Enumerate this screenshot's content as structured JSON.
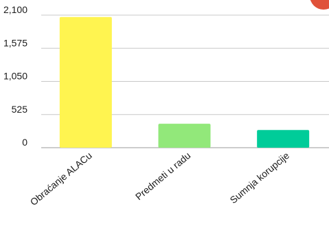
{
  "chart_data": {
    "type": "bar",
    "categories": [
      "Obraćanje ALACu",
      "Predmeti u radu",
      "Sumnja korupcije"
    ],
    "values": [
      2070,
      380,
      280
    ],
    "colors": [
      "#fff450",
      "#92e87a",
      "#00cc99"
    ],
    "yticks": [
      0,
      525,
      1050,
      1575,
      2100
    ],
    "ytick_labels": [
      "0",
      "525",
      "1,050",
      "1,575",
      "2,100"
    ],
    "ylim": [
      0,
      2100
    ],
    "title": "",
    "xlabel": "",
    "ylabel": "",
    "grid": true,
    "legend": "none"
  },
  "decorations": {
    "badge_color": "#e0523a"
  }
}
